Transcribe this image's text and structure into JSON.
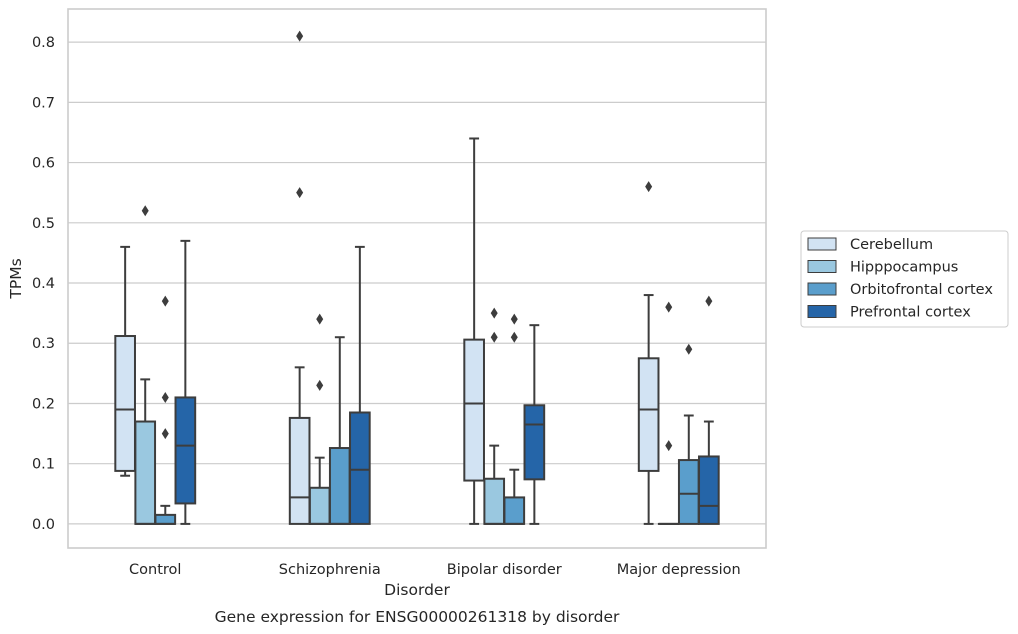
{
  "caption": "Gene expression for ENSG00000261318 by disorder",
  "chart_data": {
    "type": "box",
    "xlabel": "Disorder",
    "ylabel": "TPMs",
    "ylim": [
      -0.04,
      0.855
    ],
    "yticks": [
      0.0,
      0.1,
      0.2,
      0.3,
      0.4,
      0.5,
      0.6,
      0.7,
      0.8
    ],
    "ytick_labels": [
      "0.0",
      "0.1",
      "0.2",
      "0.3",
      "0.4",
      "0.5",
      "0.6",
      "0.7",
      "0.8"
    ],
    "grid": true,
    "legend_position": "right",
    "categories": [
      "Control",
      "Schizophrenia",
      "Bipolar disorder",
      "Major depression"
    ],
    "series": [
      {
        "name": "Cerebellum",
        "color": "#d2e3f3",
        "boxes": [
          {
            "whislo": 0.08,
            "q1": 0.088,
            "med": 0.19,
            "q3": 0.312,
            "whishi": 0.46,
            "fliers": []
          },
          {
            "whislo": 0.0,
            "q1": 0.0,
            "med": 0.044,
            "q3": 0.176,
            "whishi": 0.26,
            "fliers": [
              0.55,
              0.81
            ]
          },
          {
            "whislo": 0.0,
            "q1": 0.072,
            "med": 0.2,
            "q3": 0.306,
            "whishi": 0.64,
            "fliers": []
          },
          {
            "whislo": 0.0,
            "q1": 0.088,
            "med": 0.19,
            "q3": 0.275,
            "whishi": 0.38,
            "fliers": [
              0.56
            ]
          }
        ]
      },
      {
        "name": "Hipppocampus",
        "color": "#9ac8e0",
        "boxes": [
          {
            "whislo": 0.0,
            "q1": 0.0,
            "med": 0.0,
            "q3": 0.17,
            "whishi": 0.24,
            "fliers": [
              0.52
            ]
          },
          {
            "whislo": 0.0,
            "q1": 0.0,
            "med": 0.0,
            "q3": 0.06,
            "whishi": 0.11,
            "fliers": [
              0.23,
              0.34
            ]
          },
          {
            "whislo": 0.0,
            "q1": 0.0,
            "med": 0.0,
            "q3": 0.075,
            "whishi": 0.13,
            "fliers": [
              0.31,
              0.35
            ]
          },
          {
            "whislo": 0.0,
            "q1": 0.0,
            "med": 0.0,
            "q3": 0.0,
            "whishi": 0.0,
            "fliers": [
              0.13,
              0.36
            ]
          }
        ]
      },
      {
        "name": "Orbitofrontal cortex",
        "color": "#5a9ecc",
        "boxes": [
          {
            "whislo": 0.0,
            "q1": 0.0,
            "med": 0.0,
            "q3": 0.015,
            "whishi": 0.03,
            "fliers": [
              0.15,
              0.21,
              0.37
            ]
          },
          {
            "whislo": 0.0,
            "q1": 0.0,
            "med": 0.0,
            "q3": 0.126,
            "whishi": 0.31,
            "fliers": []
          },
          {
            "whislo": 0.0,
            "q1": 0.0,
            "med": 0.0,
            "q3": 0.044,
            "whishi": 0.09,
            "fliers": [
              0.31,
              0.34
            ]
          },
          {
            "whislo": 0.0,
            "q1": 0.0,
            "med": 0.05,
            "q3": 0.106,
            "whishi": 0.18,
            "fliers": [
              0.29
            ]
          }
        ]
      },
      {
        "name": "Prefrontal cortex",
        "color": "#2565a8",
        "boxes": [
          {
            "whislo": 0.0,
            "q1": 0.034,
            "med": 0.13,
            "q3": 0.21,
            "whishi": 0.47,
            "fliers": []
          },
          {
            "whislo": 0.0,
            "q1": 0.0,
            "med": 0.09,
            "q3": 0.185,
            "whishi": 0.46,
            "fliers": []
          },
          {
            "whislo": 0.0,
            "q1": 0.074,
            "med": 0.165,
            "q3": 0.197,
            "whishi": 0.33,
            "fliers": []
          },
          {
            "whislo": 0.0,
            "q1": 0.0,
            "med": 0.03,
            "q3": 0.112,
            "whishi": 0.17,
            "fliers": [
              0.37
            ]
          }
        ]
      }
    ]
  }
}
